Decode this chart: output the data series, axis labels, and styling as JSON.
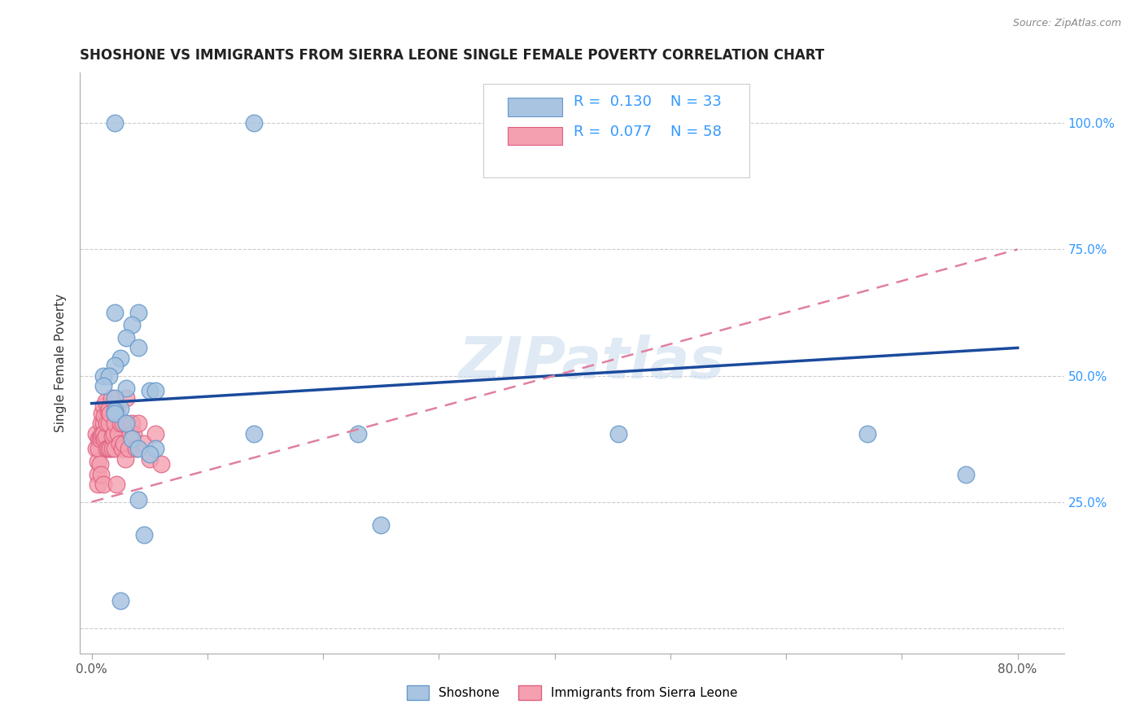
{
  "title": "SHOSHONE VS IMMIGRANTS FROM SIERRA LEONE SINGLE FEMALE POVERTY CORRELATION CHART",
  "source": "Source: ZipAtlas.com",
  "ylabel": "Single Female Poverty",
  "xlim": [
    -0.01,
    0.84
  ],
  "ylim": [
    -0.05,
    1.1
  ],
  "shoshone_color": "#a8c4e0",
  "shoshone_edge_color": "#6699cc",
  "sierra_leone_color": "#f4a0b0",
  "sierra_leone_edge_color": "#e06080",
  "shoshone_line_color": "#1a4a9c",
  "sierra_leone_line_color": "#e080a0",
  "legend_R1": "0.130",
  "legend_N1": "33",
  "legend_R2": "0.077",
  "legend_N2": "58",
  "legend_color": "#3399ff",
  "watermark": "ZIPatlas",
  "shoshone_x": [
    0.02,
    0.14,
    0.02,
    0.04,
    0.035,
    0.03,
    0.04,
    0.025,
    0.02,
    0.01,
    0.015,
    0.01,
    0.03,
    0.05,
    0.055,
    0.02,
    0.025,
    0.02,
    0.02,
    0.03,
    0.035,
    0.04,
    0.055,
    0.05,
    0.14,
    0.23,
    0.25,
    0.455,
    0.67,
    0.755,
    0.04,
    0.045,
    0.025
  ],
  "shoshone_y": [
    1.0,
    1.0,
    0.625,
    0.625,
    0.6,
    0.575,
    0.555,
    0.535,
    0.52,
    0.5,
    0.5,
    0.48,
    0.475,
    0.47,
    0.47,
    0.455,
    0.435,
    0.43,
    0.425,
    0.405,
    0.375,
    0.355,
    0.355,
    0.345,
    0.385,
    0.385,
    0.205,
    0.385,
    0.385,
    0.305,
    0.255,
    0.185,
    0.055
  ],
  "sierra_leone_x": [
    0.004,
    0.004,
    0.005,
    0.005,
    0.005,
    0.006,
    0.006,
    0.007,
    0.007,
    0.008,
    0.008,
    0.008,
    0.009,
    0.009,
    0.01,
    0.01,
    0.01,
    0.01,
    0.011,
    0.011,
    0.012,
    0.012,
    0.013,
    0.013,
    0.014,
    0.014,
    0.015,
    0.015,
    0.016,
    0.016,
    0.017,
    0.018,
    0.018,
    0.019,
    0.02,
    0.02,
    0.02,
    0.021,
    0.022,
    0.023,
    0.024,
    0.025,
    0.026,
    0.027,
    0.028,
    0.029,
    0.03,
    0.03,
    0.032,
    0.033,
    0.035,
    0.036,
    0.038,
    0.04,
    0.045,
    0.05,
    0.055,
    0.06
  ],
  "sierra_leone_y": [
    0.385,
    0.355,
    0.33,
    0.305,
    0.285,
    0.375,
    0.355,
    0.375,
    0.325,
    0.405,
    0.38,
    0.305,
    0.425,
    0.385,
    0.44,
    0.405,
    0.385,
    0.285,
    0.42,
    0.375,
    0.45,
    0.38,
    0.405,
    0.355,
    0.43,
    0.355,
    0.435,
    0.405,
    0.355,
    0.425,
    0.455,
    0.355,
    0.38,
    0.385,
    0.425,
    0.405,
    0.355,
    0.285,
    0.435,
    0.385,
    0.365,
    0.405,
    0.355,
    0.405,
    0.365,
    0.335,
    0.455,
    0.405,
    0.355,
    0.385,
    0.405,
    0.385,
    0.355,
    0.405,
    0.365,
    0.335,
    0.385,
    0.325
  ],
  "background_color": "#ffffff",
  "grid_color": "#cccccc",
  "shoshone_trendline_x0": 0.0,
  "shoshone_trendline_y0": 0.445,
  "shoshone_trendline_x1": 0.8,
  "shoshone_trendline_y1": 0.555,
  "sierra_trendline_x0": 0.0,
  "sierra_trendline_y0": 0.25,
  "sierra_trendline_x1": 0.8,
  "sierra_trendline_y1": 0.75
}
